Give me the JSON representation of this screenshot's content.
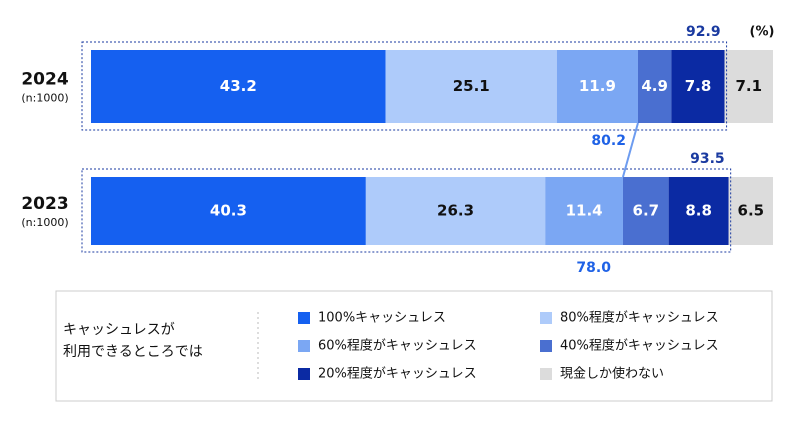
{
  "chart_data": {
    "type": "bar",
    "orientation": "horizontal",
    "stacked": true,
    "unit": "(%)",
    "categories": [
      "2024",
      "2023"
    ],
    "category_notes": [
      "(n:1000)",
      "(n:1000)"
    ],
    "xlim": [
      0,
      100
    ],
    "series": [
      {
        "name": "100%キャッシュレス",
        "color": "#1560f0",
        "text_color": "#ffffff",
        "values": [
          43.2,
          40.3
        ]
      },
      {
        "name": "80%程度がキャッシュレス",
        "color": "#aecbfa",
        "text_color": "#111111",
        "values": [
          25.1,
          26.3
        ]
      },
      {
        "name": "60%程度がキャッシュレス",
        "color": "#7ba7f3",
        "text_color": "#ffffff",
        "values": [
          11.9,
          11.4
        ]
      },
      {
        "name": "40%程度がキャッシュレス",
        "color": "#4a6fd0",
        "text_color": "#ffffff",
        "values": [
          4.9,
          6.7
        ]
      },
      {
        "name": "20%程度がキャッシュレス",
        "color": "#0b2aa3",
        "text_color": "#ffffff",
        "values": [
          7.8,
          8.8
        ]
      },
      {
        "name": "現金しか使わない",
        "color": "#dcdcdc",
        "text_color": "#111111",
        "values": [
          7.1,
          6.5
        ]
      }
    ],
    "brackets": [
      {
        "total": {
          "value": 92.9,
          "label": "92.9"
        },
        "partial": {
          "value": 80.2,
          "label": "80.2"
        }
      },
      {
        "total": {
          "value": 93.5,
          "label": "93.5"
        },
        "partial": {
          "value": 78.0,
          "label": "78.0"
        }
      }
    ],
    "total_color": "#1a3aa0",
    "partial_color": "#1f62e6",
    "legend": {
      "title": [
        "キャッシュレスが",
        "利用できるところでは"
      ]
    }
  }
}
